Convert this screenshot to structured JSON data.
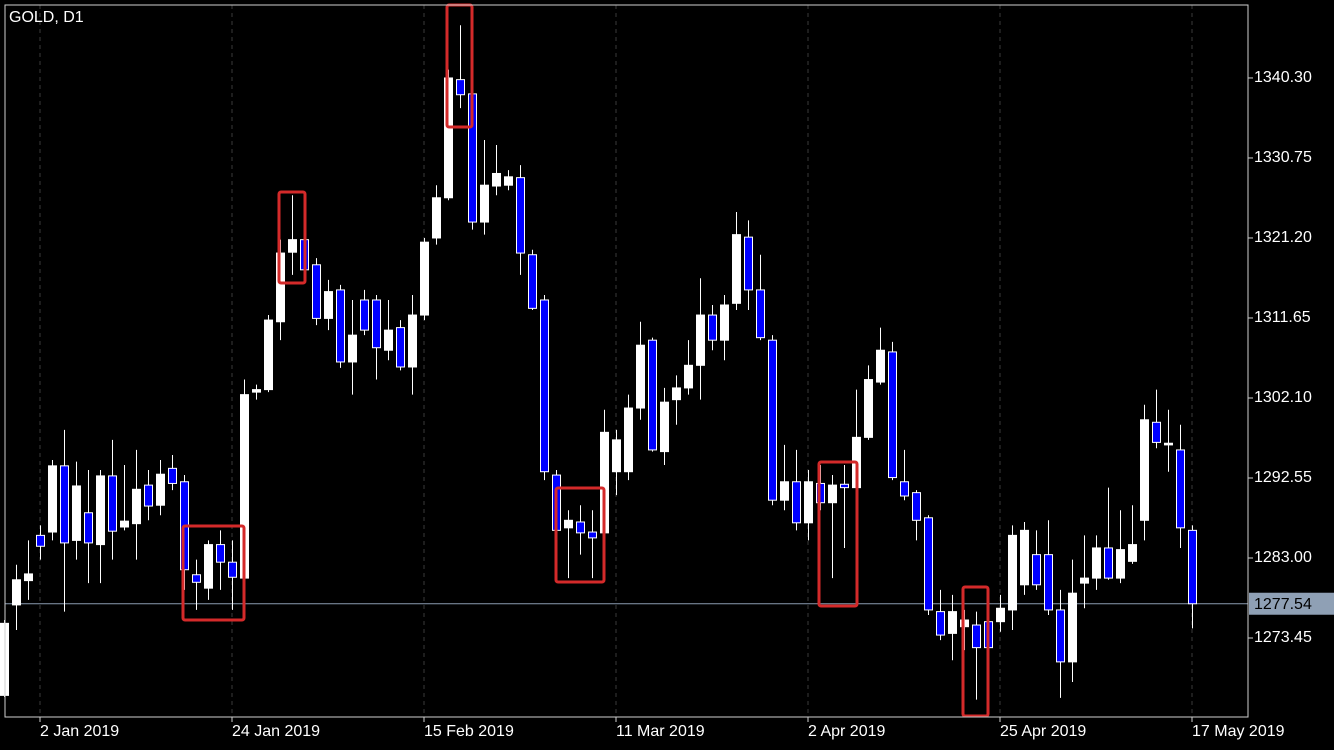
{
  "chart_data": {
    "type": "candlestick",
    "title": "GOLD, D1",
    "categories": [
      null,
      null,
      null,
      "2 Jan 2019",
      null,
      null,
      null,
      null,
      null,
      null,
      null,
      null,
      null,
      null,
      null,
      null,
      null,
      null,
      null,
      "24 Jan 2019",
      null,
      null,
      null,
      null,
      null,
      null,
      null,
      null,
      null,
      null,
      null,
      null,
      null,
      null,
      null,
      "15 Feb 2019",
      null,
      null,
      null,
      null,
      null,
      null,
      null,
      null,
      null,
      null,
      null,
      null,
      null,
      null,
      null,
      "11 Mar 2019",
      null,
      null,
      null,
      null,
      null,
      null,
      null,
      null,
      null,
      null,
      null,
      null,
      null,
      null,
      null,
      "2 Apr 2019",
      null,
      null,
      null,
      null,
      null,
      null,
      null,
      null,
      null,
      null,
      null,
      null,
      null,
      null,
      null,
      "25 Apr 2019",
      null,
      null,
      null,
      null,
      null,
      null,
      null,
      null,
      null,
      null,
      null,
      null,
      null,
      null,
      null,
      "17 May 2019"
    ],
    "open": [
      1266.6,
      1277.4,
      1280.3,
      1285.7,
      1286.1,
      1294.0,
      1285.1,
      1288.4,
      1284.6,
      1292.8,
      1286.7,
      1287.1,
      1291.7,
      1289.3,
      1293.7,
      1292.1,
      1281.0,
      1279.4,
      1284.6,
      1282.5,
      1280.6,
      1302.8,
      1303.1,
      1311.2,
      1319.5,
      1321.0,
      1318.0,
      1311.6,
      1315.0,
      1306.4,
      1313.8,
      1313.8,
      1307.8,
      1310.5,
      1305.8,
      1312.0,
      1321.2,
      1326.0,
      1340.1,
      1338.4,
      1323.1,
      1327.4,
      1327.5,
      1328.4,
      1319.2,
      1313.8,
      1292.9,
      1286.6,
      1287.3,
      1286.1,
      1286.0,
      1293.3,
      1293.3,
      1300.9,
      1309.0,
      1295.7,
      1301.9,
      1303.3,
      1306.0,
      1312.0,
      1309.0,
      1313.4,
      1321.3,
      1315.0,
      1309.0,
      1289.9,
      1292.1,
      1287.2,
      1291.9,
      1289.6,
      1291.8,
      1291.4,
      1297.4,
      1304.0,
      1307.6,
      1292.1,
      1290.8,
      1287.8,
      1276.6,
      1274.0,
      1274.8,
      1275.0,
      1275.4,
      1275.4,
      1276.8,
      1279.8,
      1283.4,
      1283.4,
      1276.8,
      1270.6,
      1280.0,
      1280.6,
      1284.2,
      1280.6,
      1282.6,
      1287.5,
      1299.2,
      1296.5,
      1295.9,
      1286.3
    ],
    "high": [
      1275.6,
      1282.2,
      1285.1,
      1286.9,
      1294.7,
      1298.3,
      1294.5,
      1293.5,
      1293.5,
      1297.1,
      1294.1,
      1295.9,
      1293.5,
      1294.7,
      1295.3,
      1292.9,
      1282.8,
      1285.1,
      1286.3,
      1285.1,
      1304.3,
      1303.7,
      1312.0,
      1321.0,
      1326.3,
      1321.6,
      1318.8,
      1316.2,
      1315.6,
      1313.8,
      1315.0,
      1314.4,
      1313.8,
      1311.4,
      1314.4,
      1321.2,
      1327.5,
      1341.3,
      1346.6,
      1340.3,
      1332.9,
      1332.3,
      1329.3,
      1329.9,
      1319.8,
      1314.4,
      1293.5,
      1288.7,
      1289.3,
      1288.7,
      1300.7,
      1298.3,
      1302.5,
      1311.2,
      1309.3,
      1303.3,
      1304.8,
      1309.0,
      1316.4,
      1313.2,
      1314.4,
      1324.3,
      1323.3,
      1319.2,
      1309.6,
      1296.5,
      1295.9,
      1293.5,
      1294.1,
      1292.9,
      1294.1,
      1303.1,
      1306.0,
      1310.5,
      1308.8,
      1295.9,
      1291.1,
      1288.1,
      1279.2,
      1278.6,
      1276.8,
      1276.6,
      1276.8,
      1278.6,
      1286.9,
      1287.3,
      1286.3,
      1287.5,
      1279.2,
      1282.8,
      1285.7,
      1285.7,
      1291.4,
      1288.7,
      1289.3,
      1301.3,
      1303.1,
      1300.7,
      1298.9,
      1286.9
    ],
    "low": [
      1266.4,
      1274.4,
      1278.0,
      1282.8,
      1285.1,
      1276.6,
      1282.8,
      1280.0,
      1280.0,
      1282.8,
      1286.3,
      1282.8,
      1287.5,
      1288.1,
      1291.1,
      1279.2,
      1276.8,
      1278.0,
      1279.2,
      1276.8,
      1278.0,
      1301.9,
      1302.8,
      1309.0,
      1316.8,
      1316.8,
      1310.8,
      1310.2,
      1305.7,
      1302.5,
      1309.6,
      1304.3,
      1306.6,
      1305.4,
      1302.5,
      1311.4,
      1320.4,
      1325.7,
      1336.7,
      1322.2,
      1321.6,
      1326.3,
      1326.9,
      1316.8,
      1312.6,
      1292.3,
      1285.7,
      1280.6,
      1283.4,
      1280.6,
      1285.1,
      1290.5,
      1292.3,
      1299.5,
      1295.7,
      1294.1,
      1298.9,
      1302.5,
      1301.9,
      1307.8,
      1306.6,
      1312.6,
      1312.6,
      1309.0,
      1289.3,
      1288.7,
      1286.3,
      1285.1,
      1288.7,
      1280.6,
      1284.2,
      1291.1,
      1297.1,
      1303.7,
      1292.3,
      1289.9,
      1285.1,
      1276.2,
      1273.2,
      1270.8,
      1272.0,
      1266.1,
      1271.8,
      1274.2,
      1274.4,
      1278.6,
      1279.2,
      1276.2,
      1266.3,
      1268.2,
      1277.0,
      1279.2,
      1280.4,
      1280.0,
      1282.3,
      1285.1,
      1296.1,
      1293.3,
      1284.2,
      1274.6
    ],
    "close": [
      1275.2,
      1280.4,
      1281.1,
      1284.4,
      1294.0,
      1284.8,
      1291.6,
      1284.8,
      1292.8,
      1286.2,
      1287.4,
      1291.2,
      1289.2,
      1293.0,
      1291.9,
      1281.6,
      1280.1,
      1284.6,
      1282.5,
      1280.7,
      1302.5,
      1303.1,
      1311.4,
      1319.4,
      1321.0,
      1317.4,
      1311.6,
      1314.8,
      1306.4,
      1309.6,
      1310.2,
      1308.1,
      1310.2,
      1305.8,
      1312.0,
      1320.7,
      1326.0,
      1340.3,
      1338.3,
      1323.1,
      1327.5,
      1328.9,
      1328.5,
      1319.4,
      1312.8,
      1293.3,
      1286.3,
      1287.5,
      1286.0,
      1285.4,
      1298.0,
      1297.1,
      1300.9,
      1308.4,
      1295.9,
      1301.6,
      1303.3,
      1306.0,
      1312.0,
      1309.0,
      1313.2,
      1321.6,
      1315.0,
      1309.3,
      1289.9,
      1292.1,
      1287.2,
      1292.1,
      1289.6,
      1291.7,
      1291.4,
      1297.4,
      1304.3,
      1307.8,
      1292.6,
      1290.4,
      1287.5,
      1276.8,
      1273.8,
      1276.6,
      1275.6,
      1272.3,
      1272.3,
      1277.0,
      1285.7,
      1286.3,
      1279.8,
      1276.8,
      1270.6,
      1278.8,
      1280.6,
      1284.2,
      1280.6,
      1284.0,
      1284.6,
      1299.5,
      1296.8,
      1296.7,
      1286.6,
      1277.54
    ],
    "up_color": "#ffffff",
    "down_color": "#0000ff",
    "last_price": 1277.54,
    "ylim": [
      1264.02,
      1349.01
    ],
    "yticks": [
      {
        "value": 1340.3,
        "label": "1340.30"
      },
      1330.75,
      {
        "value": 1321.2,
        "label": "1321.20"
      },
      1311.65,
      {
        "value": 1302.1,
        "label": "1302.10"
      },
      1292.55,
      {
        "value": 1283,
        "label": "1283.00"
      },
      1273.45
    ],
    "grid": true
  }
}
